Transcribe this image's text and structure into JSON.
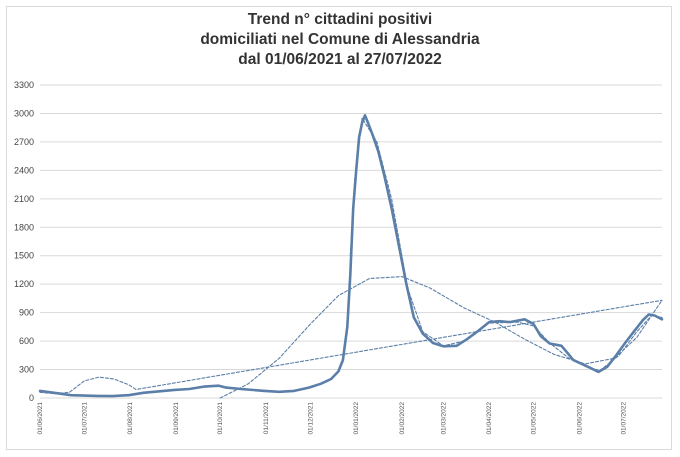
{
  "chart_data": {
    "type": "line",
    "title_lines": [
      "Trend n° cittadini positivi",
      "domiciliati nel Comune di Alessandria",
      "dal 01/06/2021 al 27/07/2022"
    ],
    "xlabel": "",
    "ylabel": "",
    "ylim": [
      0,
      3300
    ],
    "yticks": [
      0,
      300,
      600,
      900,
      1200,
      1500,
      1800,
      2100,
      2400,
      2700,
      3000,
      3300
    ],
    "xrange": [
      "2021-06-01",
      "2022-07-27"
    ],
    "xtick_labels": [
      "01/06/2021",
      "01/07/2021",
      "01/08/2021",
      "01/09/2021",
      "01/10/2021",
      "01/11/2021",
      "01/12/2021",
      "01/01/2022",
      "01/02/2022",
      "01/03/2022",
      "01/04/2022",
      "01/05/2022",
      "01/06/2022",
      "01/07/2022"
    ],
    "grid": true,
    "legend": "none",
    "series": [
      {
        "style": "solid",
        "color": "#5b7fa8",
        "points": [
          [
            "2021-06-01",
            75
          ],
          [
            "2021-06-08",
            60
          ],
          [
            "2021-06-15",
            45
          ],
          [
            "2021-06-22",
            30
          ],
          [
            "2021-07-01",
            25
          ],
          [
            "2021-07-10",
            22
          ],
          [
            "2021-07-20",
            20
          ],
          [
            "2021-07-31",
            30
          ],
          [
            "2021-08-10",
            55
          ],
          [
            "2021-08-20",
            70
          ],
          [
            "2021-08-31",
            85
          ],
          [
            "2021-09-10",
            95
          ],
          [
            "2021-09-20",
            120
          ],
          [
            "2021-09-30",
            130
          ],
          [
            "2021-10-05",
            110
          ],
          [
            "2021-10-15",
            95
          ],
          [
            "2021-10-31",
            75
          ],
          [
            "2021-11-10",
            65
          ],
          [
            "2021-11-20",
            75
          ],
          [
            "2021-11-30",
            110
          ],
          [
            "2021-12-08",
            150
          ],
          [
            "2021-12-15",
            200
          ],
          [
            "2021-12-20",
            280
          ],
          [
            "2021-12-23",
            400
          ],
          [
            "2021-12-26",
            750
          ],
          [
            "2021-12-28",
            1300
          ],
          [
            "2021-12-30",
            2000
          ],
          [
            "2022-01-01",
            2400
          ],
          [
            "2022-01-03",
            2750
          ],
          [
            "2022-01-05",
            2900
          ],
          [
            "2022-01-07",
            2980
          ],
          [
            "2022-01-09",
            2900
          ],
          [
            "2022-01-12",
            2780
          ],
          [
            "2022-01-16",
            2600
          ],
          [
            "2022-01-20",
            2350
          ],
          [
            "2022-01-25",
            2000
          ],
          [
            "2022-01-30",
            1600
          ],
          [
            "2022-02-04",
            1200
          ],
          [
            "2022-02-09",
            850
          ],
          [
            "2022-02-15",
            680
          ],
          [
            "2022-02-22",
            580
          ],
          [
            "2022-03-01",
            545
          ],
          [
            "2022-03-10",
            550
          ],
          [
            "2022-03-17",
            620
          ],
          [
            "2022-03-24",
            700
          ],
          [
            "2022-04-01",
            800
          ],
          [
            "2022-04-08",
            810
          ],
          [
            "2022-04-15",
            800
          ],
          [
            "2022-04-25",
            830
          ],
          [
            "2022-05-01",
            780
          ],
          [
            "2022-05-06",
            650
          ],
          [
            "2022-05-12",
            575
          ],
          [
            "2022-05-20",
            550
          ],
          [
            "2022-05-28",
            400
          ],
          [
            "2022-06-08",
            320
          ],
          [
            "2022-06-14",
            275
          ],
          [
            "2022-06-20",
            330
          ],
          [
            "2022-06-26",
            450
          ],
          [
            "2022-07-02",
            580
          ],
          [
            "2022-07-08",
            700
          ],
          [
            "2022-07-14",
            820
          ],
          [
            "2022-07-18",
            880
          ],
          [
            "2022-07-22",
            870
          ],
          [
            "2022-07-27",
            830
          ]
        ]
      },
      {
        "style": "dashed",
        "color": "#5b7fa8",
        "points": [
          [
            "2021-06-01",
            60
          ],
          [
            "2021-06-11",
            45
          ],
          [
            "2021-06-21",
            60
          ],
          [
            "2021-07-01",
            180
          ],
          [
            "2021-07-11",
            220
          ],
          [
            "2021-07-21",
            200
          ],
          [
            "2021-07-31",
            140
          ],
          [
            "2021-08-05",
            90
          ],
          [
            "2022-07-27",
            1030
          ]
        ]
      },
      {
        "style": "dashed",
        "color": "#5b7fa8",
        "points": [
          [
            "2021-10-01",
            0
          ],
          [
            "2021-10-20",
            150
          ],
          [
            "2021-11-10",
            420
          ],
          [
            "2021-12-01",
            780
          ],
          [
            "2021-12-20",
            1080
          ],
          [
            "2022-01-10",
            1260
          ],
          [
            "2022-02-01",
            1280
          ],
          [
            "2022-02-20",
            1160
          ],
          [
            "2022-03-15",
            950
          ],
          [
            "2022-04-05",
            800
          ],
          [
            "2022-04-25",
            620
          ],
          [
            "2022-05-15",
            460
          ],
          [
            "2022-06-05",
            360
          ],
          [
            "2022-06-25",
            420
          ],
          [
            "2022-07-10",
            640
          ],
          [
            "2022-07-27",
            1030
          ]
        ]
      },
      {
        "style": "dashed",
        "color": "#5b7fa8",
        "points": [
          [
            "2021-12-28",
            1500
          ],
          [
            "2021-12-31",
            2300
          ],
          [
            "2022-01-05",
            2950
          ],
          [
            "2022-01-15",
            2700
          ],
          [
            "2022-01-25",
            2100
          ],
          [
            "2022-02-05",
            1150
          ],
          [
            "2022-02-15",
            700
          ],
          [
            "2022-03-01",
            550
          ],
          [
            "2022-03-15",
            600
          ],
          [
            "2022-04-01",
            790
          ],
          [
            "2022-04-20",
            800
          ],
          [
            "2022-05-01",
            760
          ],
          [
            "2022-05-12",
            580
          ],
          [
            "2022-05-25",
            420
          ],
          [
            "2022-06-10",
            310
          ],
          [
            "2022-06-15",
            290
          ],
          [
            "2022-06-28",
            450
          ],
          [
            "2022-07-10",
            700
          ],
          [
            "2022-07-20",
            870
          ],
          [
            "2022-07-27",
            850
          ]
        ]
      }
    ]
  }
}
